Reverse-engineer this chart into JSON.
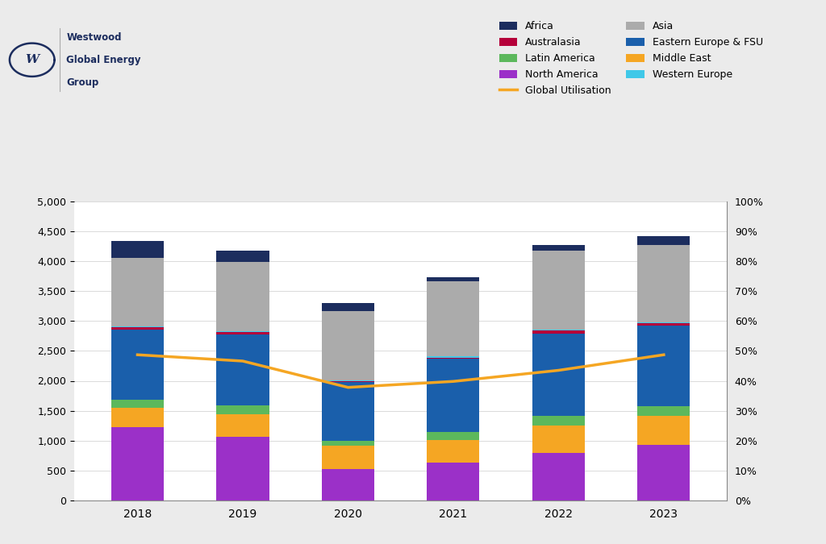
{
  "years": [
    2018,
    2019,
    2020,
    2021,
    2022,
    2023
  ],
  "segments": {
    "North America": [
      1220,
      1060,
      530,
      630,
      790,
      930
    ],
    "Middle East": [
      330,
      380,
      380,
      380,
      460,
      490
    ],
    "Latin America": [
      130,
      150,
      80,
      130,
      160,
      160
    ],
    "Eastern Europe & FSU": [
      1180,
      1190,
      990,
      1230,
      1380,
      1340
    ],
    "Australasia": [
      30,
      35,
      20,
      20,
      50,
      40
    ],
    "Western Europe": [
      20,
      20,
      10,
      15,
      20,
      20
    ],
    "Asia": [
      1140,
      1150,
      1160,
      1260,
      1310,
      1290
    ],
    "Africa": [
      290,
      190,
      130,
      70,
      100,
      150
    ]
  },
  "colors": {
    "North America": "#9B30C8",
    "Middle East": "#F5A623",
    "Latin America": "#5CB85C",
    "Eastern Europe & FSU": "#1A5FAB",
    "Australasia": "#B5003A",
    "Western Europe": "#40C8E8",
    "Asia": "#ABABAB",
    "Africa": "#1C2D5E"
  },
  "utilisation": [
    0.487,
    0.466,
    0.378,
    0.398,
    0.435,
    0.487
  ],
  "utilisation_color": "#F5A623",
  "ylim_left": [
    0,
    5000
  ],
  "ylim_right": [
    0,
    1.0
  ],
  "yticks_left": [
    0,
    500,
    1000,
    1500,
    2000,
    2500,
    3000,
    3500,
    4000,
    4500,
    5000
  ],
  "yticks_right": [
    0.0,
    0.1,
    0.2,
    0.3,
    0.4,
    0.5,
    0.6,
    0.7,
    0.8,
    0.9,
    1.0
  ],
  "bg_color": "#EBEBEB",
  "plot_bg_color": "#FFFFFF",
  "bar_width": 0.5,
  "dark_navy": "#1C2D5E",
  "logo_text_color": "#1C2D5E"
}
